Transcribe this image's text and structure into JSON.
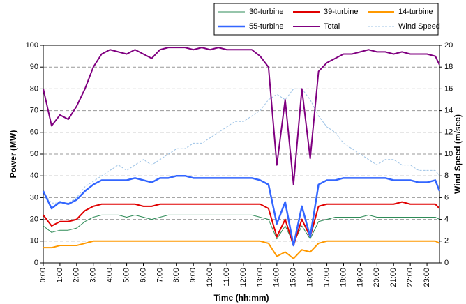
{
  "chart_data": {
    "type": "line",
    "x_label": "Time (hh:mm)",
    "y_label": "Power (MW)",
    "y2_label": "Wind Speed (m/sec)",
    "x": [
      0,
      0.5,
      1,
      1.5,
      2,
      2.5,
      3,
      3.5,
      4,
      4.5,
      5,
      5.5,
      6,
      6.5,
      7,
      7.5,
      8,
      8.5,
      9,
      9.5,
      10,
      10.5,
      11,
      11.5,
      12,
      12.5,
      13,
      13.5,
      14,
      14.5,
      15,
      15.5,
      16,
      16.5,
      17,
      17.5,
      18,
      18.5,
      19,
      19.5,
      20,
      20.5,
      21,
      21.5,
      22,
      22.5,
      23,
      23.5,
      23.75
    ],
    "xlim": [
      0,
      23.75
    ],
    "xticks": [
      {
        "value": 0,
        "label": "0:00"
      },
      {
        "value": 1,
        "label": "1:00"
      },
      {
        "value": 2,
        "label": "2:00"
      },
      {
        "value": 3,
        "label": "3:00"
      },
      {
        "value": 4,
        "label": "4:00"
      },
      {
        "value": 5,
        "label": "5:00"
      },
      {
        "value": 6,
        "label": "6:00"
      },
      {
        "value": 7,
        "label": "7:00"
      },
      {
        "value": 8,
        "label": "8:00"
      },
      {
        "value": 9,
        "label": "9:00"
      },
      {
        "value": 10,
        "label": "10:00"
      },
      {
        "value": 11,
        "label": "11:00"
      },
      {
        "value": 12,
        "label": "12:00"
      },
      {
        "value": 13,
        "label": "13:00"
      },
      {
        "value": 14,
        "label": "14:00"
      },
      {
        "value": 15,
        "label": "15:00"
      },
      {
        "value": 16,
        "label": "16:00"
      },
      {
        "value": 17,
        "label": "17:00"
      },
      {
        "value": 18,
        "label": "18:00"
      },
      {
        "value": 19,
        "label": "19:00"
      },
      {
        "value": 20,
        "label": "20:00"
      },
      {
        "value": 21,
        "label": "21:00"
      },
      {
        "value": 22,
        "label": "22:00"
      },
      {
        "value": 23,
        "label": "23:00"
      }
    ],
    "ylim": [
      0,
      100
    ],
    "yticks": [
      0,
      10,
      20,
      30,
      40,
      50,
      60,
      70,
      80,
      90,
      100
    ],
    "y2lim": [
      0,
      20
    ],
    "y2ticks": [
      0,
      2,
      4,
      6,
      8,
      10,
      12,
      14,
      16,
      18,
      20
    ],
    "grid": true,
    "legend": "top-right",
    "series": [
      {
        "name": "30-turbine",
        "color": "#2e8b57",
        "width": 1,
        "values": [
          17,
          14,
          15,
          15,
          16,
          19,
          21,
          22,
          22,
          22,
          21,
          22,
          21,
          20,
          21,
          22,
          22,
          22,
          22,
          22,
          22,
          22,
          22,
          22,
          22,
          22,
          21,
          20,
          11,
          17,
          9,
          17,
          11,
          19,
          20,
          21,
          21,
          21,
          21,
          22,
          21,
          21,
          21,
          21,
          21,
          21,
          21,
          21,
          20
        ]
      },
      {
        "name": "39-turbine",
        "color": "#e00000",
        "width": 2,
        "values": [
          22,
          17,
          19,
          19,
          20,
          24,
          26,
          27,
          27,
          27,
          27,
          27,
          26,
          26,
          27,
          27,
          27,
          27,
          27,
          27,
          27,
          27,
          27,
          27,
          27,
          27,
          27,
          25,
          12,
          20,
          8,
          20,
          12,
          26,
          27,
          27,
          27,
          27,
          27,
          27,
          27,
          27,
          27,
          28,
          27,
          27,
          27,
          27,
          25
        ]
      },
      {
        "name": "14-turbine",
        "color": "#ff9900",
        "width": 2,
        "values": [
          7,
          7,
          8,
          8,
          8,
          9,
          10,
          10,
          10,
          10,
          10,
          10,
          10,
          10,
          10,
          10,
          10,
          10,
          10,
          10,
          10,
          10,
          10,
          10,
          10,
          10,
          10,
          9,
          3,
          5,
          2,
          6,
          5,
          9,
          10,
          10,
          10,
          10,
          10,
          10,
          10,
          10,
          10,
          10,
          10,
          10,
          10,
          10,
          9
        ]
      },
      {
        "name": "55-turbine",
        "color": "#3366ff",
        "width": 2.5,
        "values": [
          33,
          25,
          28,
          27,
          29,
          33,
          36,
          38,
          38,
          38,
          38,
          39,
          38,
          37,
          39,
          39,
          40,
          40,
          39,
          39,
          39,
          39,
          39,
          39,
          39,
          39,
          38,
          36,
          18,
          28,
          8,
          26,
          12,
          36,
          38,
          38,
          39,
          39,
          39,
          39,
          39,
          39,
          38,
          38,
          38,
          37,
          37,
          38,
          33
        ]
      },
      {
        "name": "Total",
        "color": "#800080",
        "width": 2,
        "values": [
          80,
          63,
          68,
          66,
          72,
          80,
          90,
          96,
          98,
          97,
          96,
          98,
          96,
          94,
          98,
          99,
          99,
          99,
          98,
          99,
          98,
          99,
          98,
          98,
          98,
          98,
          95,
          90,
          45,
          75,
          36,
          80,
          48,
          88,
          92,
          94,
          96,
          96,
          97,
          98,
          97,
          97,
          96,
          97,
          96,
          96,
          96,
          95,
          91
        ]
      },
      {
        "name": "Wind Speed",
        "color": "#9dc3e6",
        "width": 1,
        "dash": true,
        "axis": "y2",
        "values": [
          6.5,
          5.5,
          5.5,
          5.5,
          6,
          7,
          7.5,
          8,
          8.5,
          9,
          8.5,
          9,
          9.5,
          9,
          9.5,
          10,
          10.5,
          10.5,
          11,
          11,
          11.5,
          12,
          12.5,
          13,
          13,
          13.5,
          14,
          15,
          15.5,
          15,
          16,
          16,
          15,
          13.5,
          12.5,
          12,
          11,
          10.5,
          10,
          9.5,
          9,
          9.5,
          9.5,
          9,
          9,
          8.5,
          8.5,
          8.5,
          8
        ]
      }
    ]
  }
}
